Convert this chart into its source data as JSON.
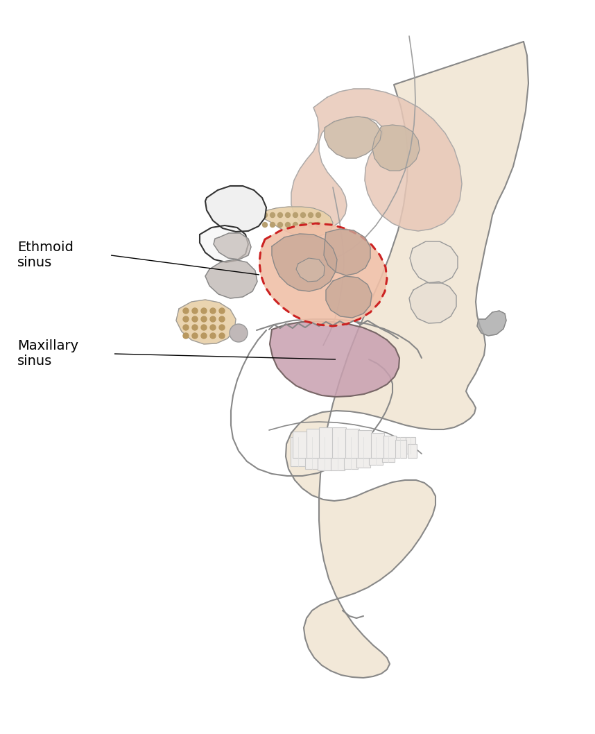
{
  "background_color": "#ffffff",
  "label_ethmoid": "Ethmoid\nsinus",
  "label_maxillary": "Maxillary\nsinus",
  "label_color": "#000000",
  "label_fontsize": 14,
  "skull_fill": "#f2e8d8",
  "skull_outline": "#888888",
  "ethmoid_fill": "#f0c0a8",
  "ethmoid_dotted_color": "#cc2222",
  "maxillary_fill": "#c8a0b0",
  "nasal_bone_fill": "#e8d0a8",
  "turbinate_fill": "#e8c8b0",
  "sphenoid_fill": "#e8e0d0",
  "top_nasal_fill": "#e8c8b8",
  "gray_structure": "#b0a8a0",
  "bone_beige": "#ddd0b0"
}
